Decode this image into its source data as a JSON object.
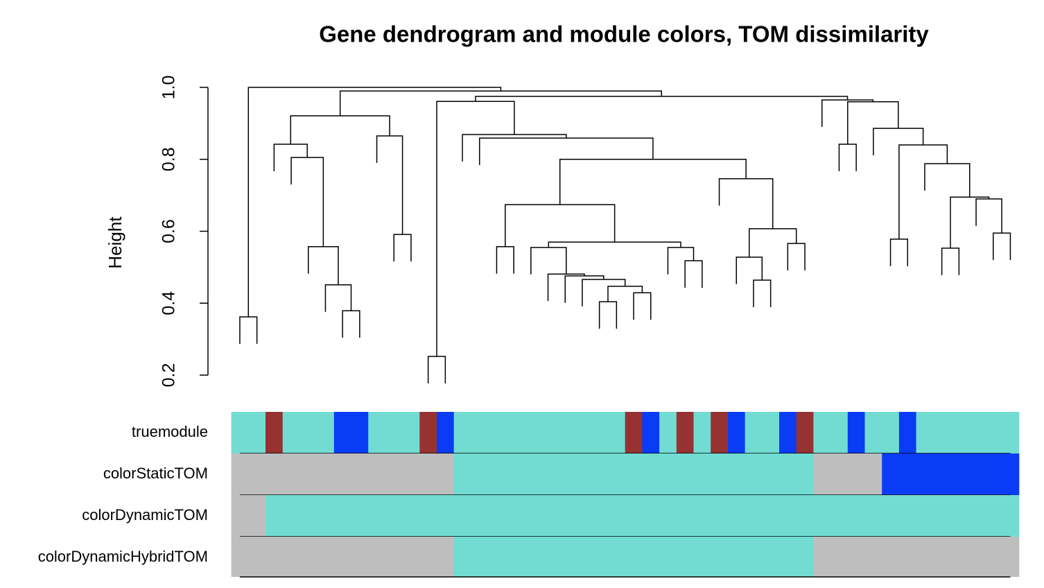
{
  "chart_data": {
    "type": "dendrogram",
    "title": "Gene dendrogram and module colors, TOM dissimilarity",
    "y_label": "Height",
    "ylim": [
      0.2,
      1.0
    ],
    "yticks": [
      {
        "value": 0.2,
        "label": "0.2"
      },
      {
        "value": 0.4,
        "label": "0.4"
      },
      {
        "value": 0.6,
        "label": "0.6"
      },
      {
        "value": 0.8,
        "label": "0.8"
      },
      {
        "value": 1.0,
        "label": "1.0"
      }
    ],
    "hang": 0.075,
    "merge": [
      [
        -1,
        -2
      ],
      [
        -7,
        -8
      ],
      [
        -6,
        2
      ],
      [
        -5,
        3
      ],
      [
        -4,
        4
      ],
      [
        -3,
        5
      ],
      [
        -10,
        -11
      ],
      [
        -9,
        7
      ],
      [
        6,
        8
      ],
      [
        -12,
        -13
      ],
      [
        -16,
        -17
      ],
      [
        -22,
        -23
      ],
      [
        -24,
        -25
      ],
      [
        12,
        13
      ],
      [
        -21,
        14
      ],
      [
        -20,
        15
      ],
      [
        -19,
        16
      ],
      [
        -18,
        17
      ],
      [
        -27,
        -28
      ],
      [
        -26,
        19
      ],
      [
        18,
        20
      ],
      [
        11,
        21
      ],
      [
        -31,
        -32
      ],
      [
        -30,
        23
      ],
      [
        -33,
        -34
      ],
      [
        24,
        25
      ],
      [
        -29,
        26
      ],
      [
        22,
        27
      ],
      [
        -15,
        28
      ],
      [
        -14,
        29
      ],
      [
        10,
        30
      ],
      [
        -36,
        -37
      ],
      [
        -39,
        -40
      ],
      [
        -42,
        -43
      ],
      [
        -45,
        -46
      ],
      [
        -44,
        35
      ],
      [
        34,
        36
      ],
      [
        -41,
        37
      ],
      [
        33,
        38
      ],
      [
        -38,
        39
      ],
      [
        32,
        40
      ],
      [
        -35,
        41
      ],
      [
        31,
        42
      ],
      [
        9,
        43
      ],
      [
        1,
        44
      ]
    ],
    "heights": [
      0.362,
      0.379,
      0.451,
      0.557,
      0.805,
      0.842,
      0.591,
      0.865,
      0.921,
      0.252,
      0.557,
      0.404,
      0.429,
      0.447,
      0.466,
      0.476,
      0.481,
      0.555,
      0.518,
      0.555,
      0.57,
      0.674,
      0.464,
      0.528,
      0.566,
      0.607,
      0.746,
      0.8,
      0.859,
      0.869,
      0.961,
      0.842,
      0.578,
      0.553,
      0.595,
      0.69,
      0.695,
      0.788,
      0.84,
      0.886,
      0.96,
      0.965,
      0.975,
      0.99,
      1.0
    ],
    "color_rows": [
      {
        "name": "truemodule",
        "colors": [
          "#72dcd2",
          "#72dcd2",
          "#963232",
          "#72dcd2",
          "#72dcd2",
          "#72dcd2",
          "#0a3cf5",
          "#0a3cf5",
          "#72dcd2",
          "#72dcd2",
          "#72dcd2",
          "#963232",
          "#0a3cf5",
          "#72dcd2",
          "#72dcd2",
          "#72dcd2",
          "#72dcd2",
          "#72dcd2",
          "#72dcd2",
          "#72dcd2",
          "#72dcd2",
          "#72dcd2",
          "#72dcd2",
          "#963232",
          "#0a3cf5",
          "#72dcd2",
          "#963232",
          "#72dcd2",
          "#963232",
          "#0a3cf5",
          "#72dcd2",
          "#72dcd2",
          "#0a3cf5",
          "#963232",
          "#72dcd2",
          "#72dcd2",
          "#0a3cf5",
          "#72dcd2",
          "#72dcd2",
          "#0a3cf5",
          "#72dcd2",
          "#72dcd2",
          "#72dcd2",
          "#72dcd2",
          "#72dcd2",
          "#72dcd2"
        ]
      },
      {
        "name": "colorStaticTOM",
        "colors": [
          "#bebebe",
          "#bebebe",
          "#bebebe",
          "#bebebe",
          "#bebebe",
          "#bebebe",
          "#bebebe",
          "#bebebe",
          "#bebebe",
          "#bebebe",
          "#bebebe",
          "#bebebe",
          "#bebebe",
          "#72dcd2",
          "#72dcd2",
          "#72dcd2",
          "#72dcd2",
          "#72dcd2",
          "#72dcd2",
          "#72dcd2",
          "#72dcd2",
          "#72dcd2",
          "#72dcd2",
          "#72dcd2",
          "#72dcd2",
          "#72dcd2",
          "#72dcd2",
          "#72dcd2",
          "#72dcd2",
          "#72dcd2",
          "#72dcd2",
          "#72dcd2",
          "#72dcd2",
          "#72dcd2",
          "#bebebe",
          "#bebebe",
          "#bebebe",
          "#bebebe",
          "#0a3cf5",
          "#0a3cf5",
          "#0a3cf5",
          "#0a3cf5",
          "#0a3cf5",
          "#0a3cf5",
          "#0a3cf5",
          "#0a3cf5"
        ]
      },
      {
        "name": "colorDynamicTOM",
        "colors": [
          "#bebebe",
          "#bebebe",
          "#72dcd2",
          "#72dcd2",
          "#72dcd2",
          "#72dcd2",
          "#72dcd2",
          "#72dcd2",
          "#72dcd2",
          "#72dcd2",
          "#72dcd2",
          "#72dcd2",
          "#72dcd2",
          "#72dcd2",
          "#72dcd2",
          "#72dcd2",
          "#72dcd2",
          "#72dcd2",
          "#72dcd2",
          "#72dcd2",
          "#72dcd2",
          "#72dcd2",
          "#72dcd2",
          "#72dcd2",
          "#72dcd2",
          "#72dcd2",
          "#72dcd2",
          "#72dcd2",
          "#72dcd2",
          "#72dcd2",
          "#72dcd2",
          "#72dcd2",
          "#72dcd2",
          "#72dcd2",
          "#72dcd2",
          "#72dcd2",
          "#72dcd2",
          "#72dcd2",
          "#72dcd2",
          "#72dcd2",
          "#72dcd2",
          "#72dcd2",
          "#72dcd2",
          "#72dcd2",
          "#72dcd2",
          "#72dcd2"
        ]
      },
      {
        "name": "colorDynamicHybridTOM",
        "colors": [
          "#bebebe",
          "#bebebe",
          "#bebebe",
          "#bebebe",
          "#bebebe",
          "#bebebe",
          "#bebebe",
          "#bebebe",
          "#bebebe",
          "#bebebe",
          "#bebebe",
          "#bebebe",
          "#bebebe",
          "#72dcd2",
          "#72dcd2",
          "#72dcd2",
          "#72dcd2",
          "#72dcd2",
          "#72dcd2",
          "#72dcd2",
          "#72dcd2",
          "#72dcd2",
          "#72dcd2",
          "#72dcd2",
          "#72dcd2",
          "#72dcd2",
          "#72dcd2",
          "#72dcd2",
          "#72dcd2",
          "#72dcd2",
          "#72dcd2",
          "#72dcd2",
          "#72dcd2",
          "#72dcd2",
          "#bebebe",
          "#bebebe",
          "#bebebe",
          "#bebebe",
          "#bebebe",
          "#bebebe",
          "#bebebe",
          "#bebebe",
          "#bebebe",
          "#bebebe",
          "#bebebe",
          "#bebebe"
        ]
      }
    ]
  }
}
